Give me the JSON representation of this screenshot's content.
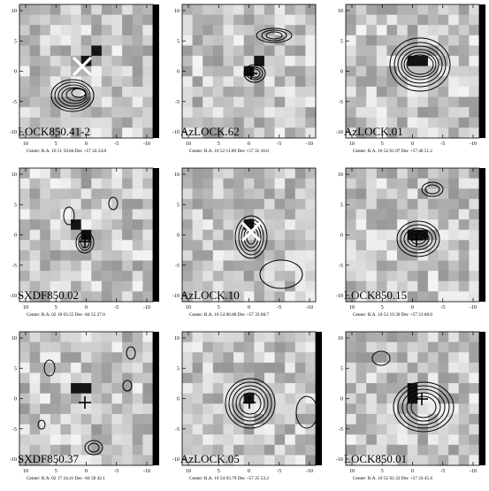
{
  "axis_ticks": {
    "x": [
      "10",
      "5",
      "0",
      "-5",
      "-10"
    ],
    "y": [
      "10",
      "5",
      "0",
      "-5",
      "-10"
    ]
  },
  "panels": [
    {
      "id": "LOCK850.41-2",
      "label": "LOCK850.41-2",
      "caption": "Center:   R.A.  10 51 59.84     Dec  +57 24 24.8",
      "marker": "x",
      "seed": 11
    },
    {
      "id": "AzLOCK.62",
      "label": "AzLOCK.62",
      "caption": "Center:   R.A.  10 52 11.89     Dec  +57 35 10.0",
      "marker": "plus",
      "seed": 23
    },
    {
      "id": "AzLOCK.01",
      "label": "AzLOCK.01",
      "caption": "Center:   R.A.  10 52 01.97     Dec  +57 40 51.2",
      "marker": "none",
      "seed": 37
    },
    {
      "id": "SXDF850.02",
      "label": "SXDF850.02",
      "caption": "Center:   R.A.  02 18 03.55     Dec  -04 55 27.0",
      "marker": "plus",
      "seed": 41
    },
    {
      "id": "AzLOCK.10",
      "label": "AzLOCK.10",
      "caption": "Center:   R.A.  10 54 06.86     Dec  +57 33 08.7",
      "marker": "x",
      "seed": 53
    },
    {
      "id": "LOCK850.15",
      "label": "LOCK850.15",
      "caption": "Center:   R.A.  10 53 19.30     Dec  +57 21 08.0",
      "marker": "plus",
      "seed": 67
    },
    {
      "id": "SXDF850.37",
      "label": "SXDF850.37",
      "caption": "Center:   R.A.  02 17 24.41     Dec  -04 58 42.1",
      "marker": "plus",
      "seed": 71
    },
    {
      "id": "AzLOCK.05",
      "label": "AzLOCK.05",
      "caption": "Center:   R.A.  10 54 03.79     Dec  +57 25 53.2",
      "marker": "plus",
      "seed": 83
    },
    {
      "id": "LOCK850.01",
      "label": "LOCK850.01",
      "caption": "Center:   R.A.  10 52 01.32     Dec  +57 24 45.6",
      "marker": "plus",
      "seed": 97
    }
  ]
}
